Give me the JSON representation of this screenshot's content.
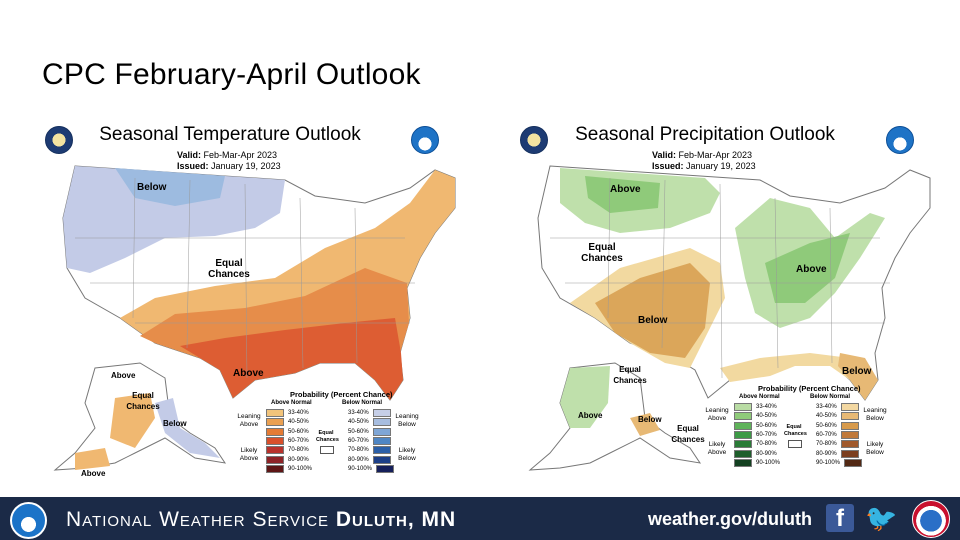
{
  "slide": {
    "title": "CPC February-April  Outlook"
  },
  "temp": {
    "title": "Seasonal Temperature Outlook",
    "valid_label": "Valid:",
    "valid_value": "Feb-Mar-Apr 2023",
    "issued_label": "Issued:",
    "issued_value": "January 19, 2023",
    "labels": {
      "below": "Below",
      "equal": "Equal Chances",
      "above": "Above",
      "ak_above": "Above",
      "ak_equal": "Equal Chances",
      "ak_below": "Below",
      "ak_above2": "Above"
    },
    "legend": {
      "title": "Probability (Percent Chance)",
      "above_head": "Above Normal",
      "below_head": "Below Normal",
      "leaning_above": "Leaning Above",
      "likely_above": "Likely Above",
      "leaning_below": "Leaning Below",
      "likely_below": "Likely Below",
      "equal_chances": "Equal Chances",
      "ranges": [
        "33-40%",
        "40-50%",
        "50-60%",
        "60-70%",
        "70-80%",
        "80-90%",
        "90-100%"
      ],
      "above_colors": [
        "#f2c47b",
        "#eaa052",
        "#e47b35",
        "#d8502b",
        "#b8322c",
        "#8e2327",
        "#5e1616"
      ],
      "below_colors": [
        "#c6cfe8",
        "#a7bde0",
        "#7fa6d6",
        "#4f86c4",
        "#2b5fa8",
        "#1c3f88",
        "#151f5a"
      ]
    },
    "colors": {
      "below1": "#c3cbe7",
      "below2": "#9dbbe0",
      "above1": "#f0b871",
      "above2": "#e68d4a",
      "above3": "#dd5d33"
    }
  },
  "precip": {
    "title": "Seasonal Precipitation Outlook",
    "valid_label": "Valid:",
    "valid_value": "Feb-Mar-Apr 2023",
    "issued_label": "Issued:",
    "issued_value": "January 19, 2023",
    "labels": {
      "above_nw": "Above",
      "equal": "Equal Chances",
      "above_ov": "Above",
      "below_sw": "Below",
      "below_fl": "Below",
      "ak_equal": "Equal Chances",
      "ak_above": "Above",
      "ak_below": "Below",
      "ak_equal2": "Equal Chances"
    },
    "legend": {
      "title": "Probability (Percent Chance)",
      "above_head": "Above Normal",
      "below_head": "Below Normal",
      "leaning_above": "Leaning Above",
      "likely_above": "Likely Above",
      "leaning_below": "Leaning Below",
      "likely_below": "Likely Below",
      "equal_chances": "Equal Chances",
      "ranges": [
        "33-40%",
        "40-50%",
        "50-60%",
        "60-70%",
        "70-80%",
        "80-90%",
        "90-100%"
      ],
      "above_colors": [
        "#b9dca4",
        "#8fcb7a",
        "#5fb35a",
        "#3c9a45",
        "#2a7b37",
        "#1e5e2b",
        "#134020"
      ],
      "below_colors": [
        "#f3d8a2",
        "#e7b975",
        "#d79a4b",
        "#c0793a",
        "#a0592c",
        "#7b3f20",
        "#522914"
      ]
    },
    "colors": {
      "above1": "#bfe0ab",
      "above2": "#8fca7a",
      "below1": "#f2d9a0",
      "below2": "#dba65a"
    }
  },
  "footer": {
    "office_prefix": "National Weather Service",
    "office_city": "Duluth, MN",
    "site": "weather.gov/duluth",
    "fb_glyph": "f",
    "tw_glyph": "🐦"
  }
}
